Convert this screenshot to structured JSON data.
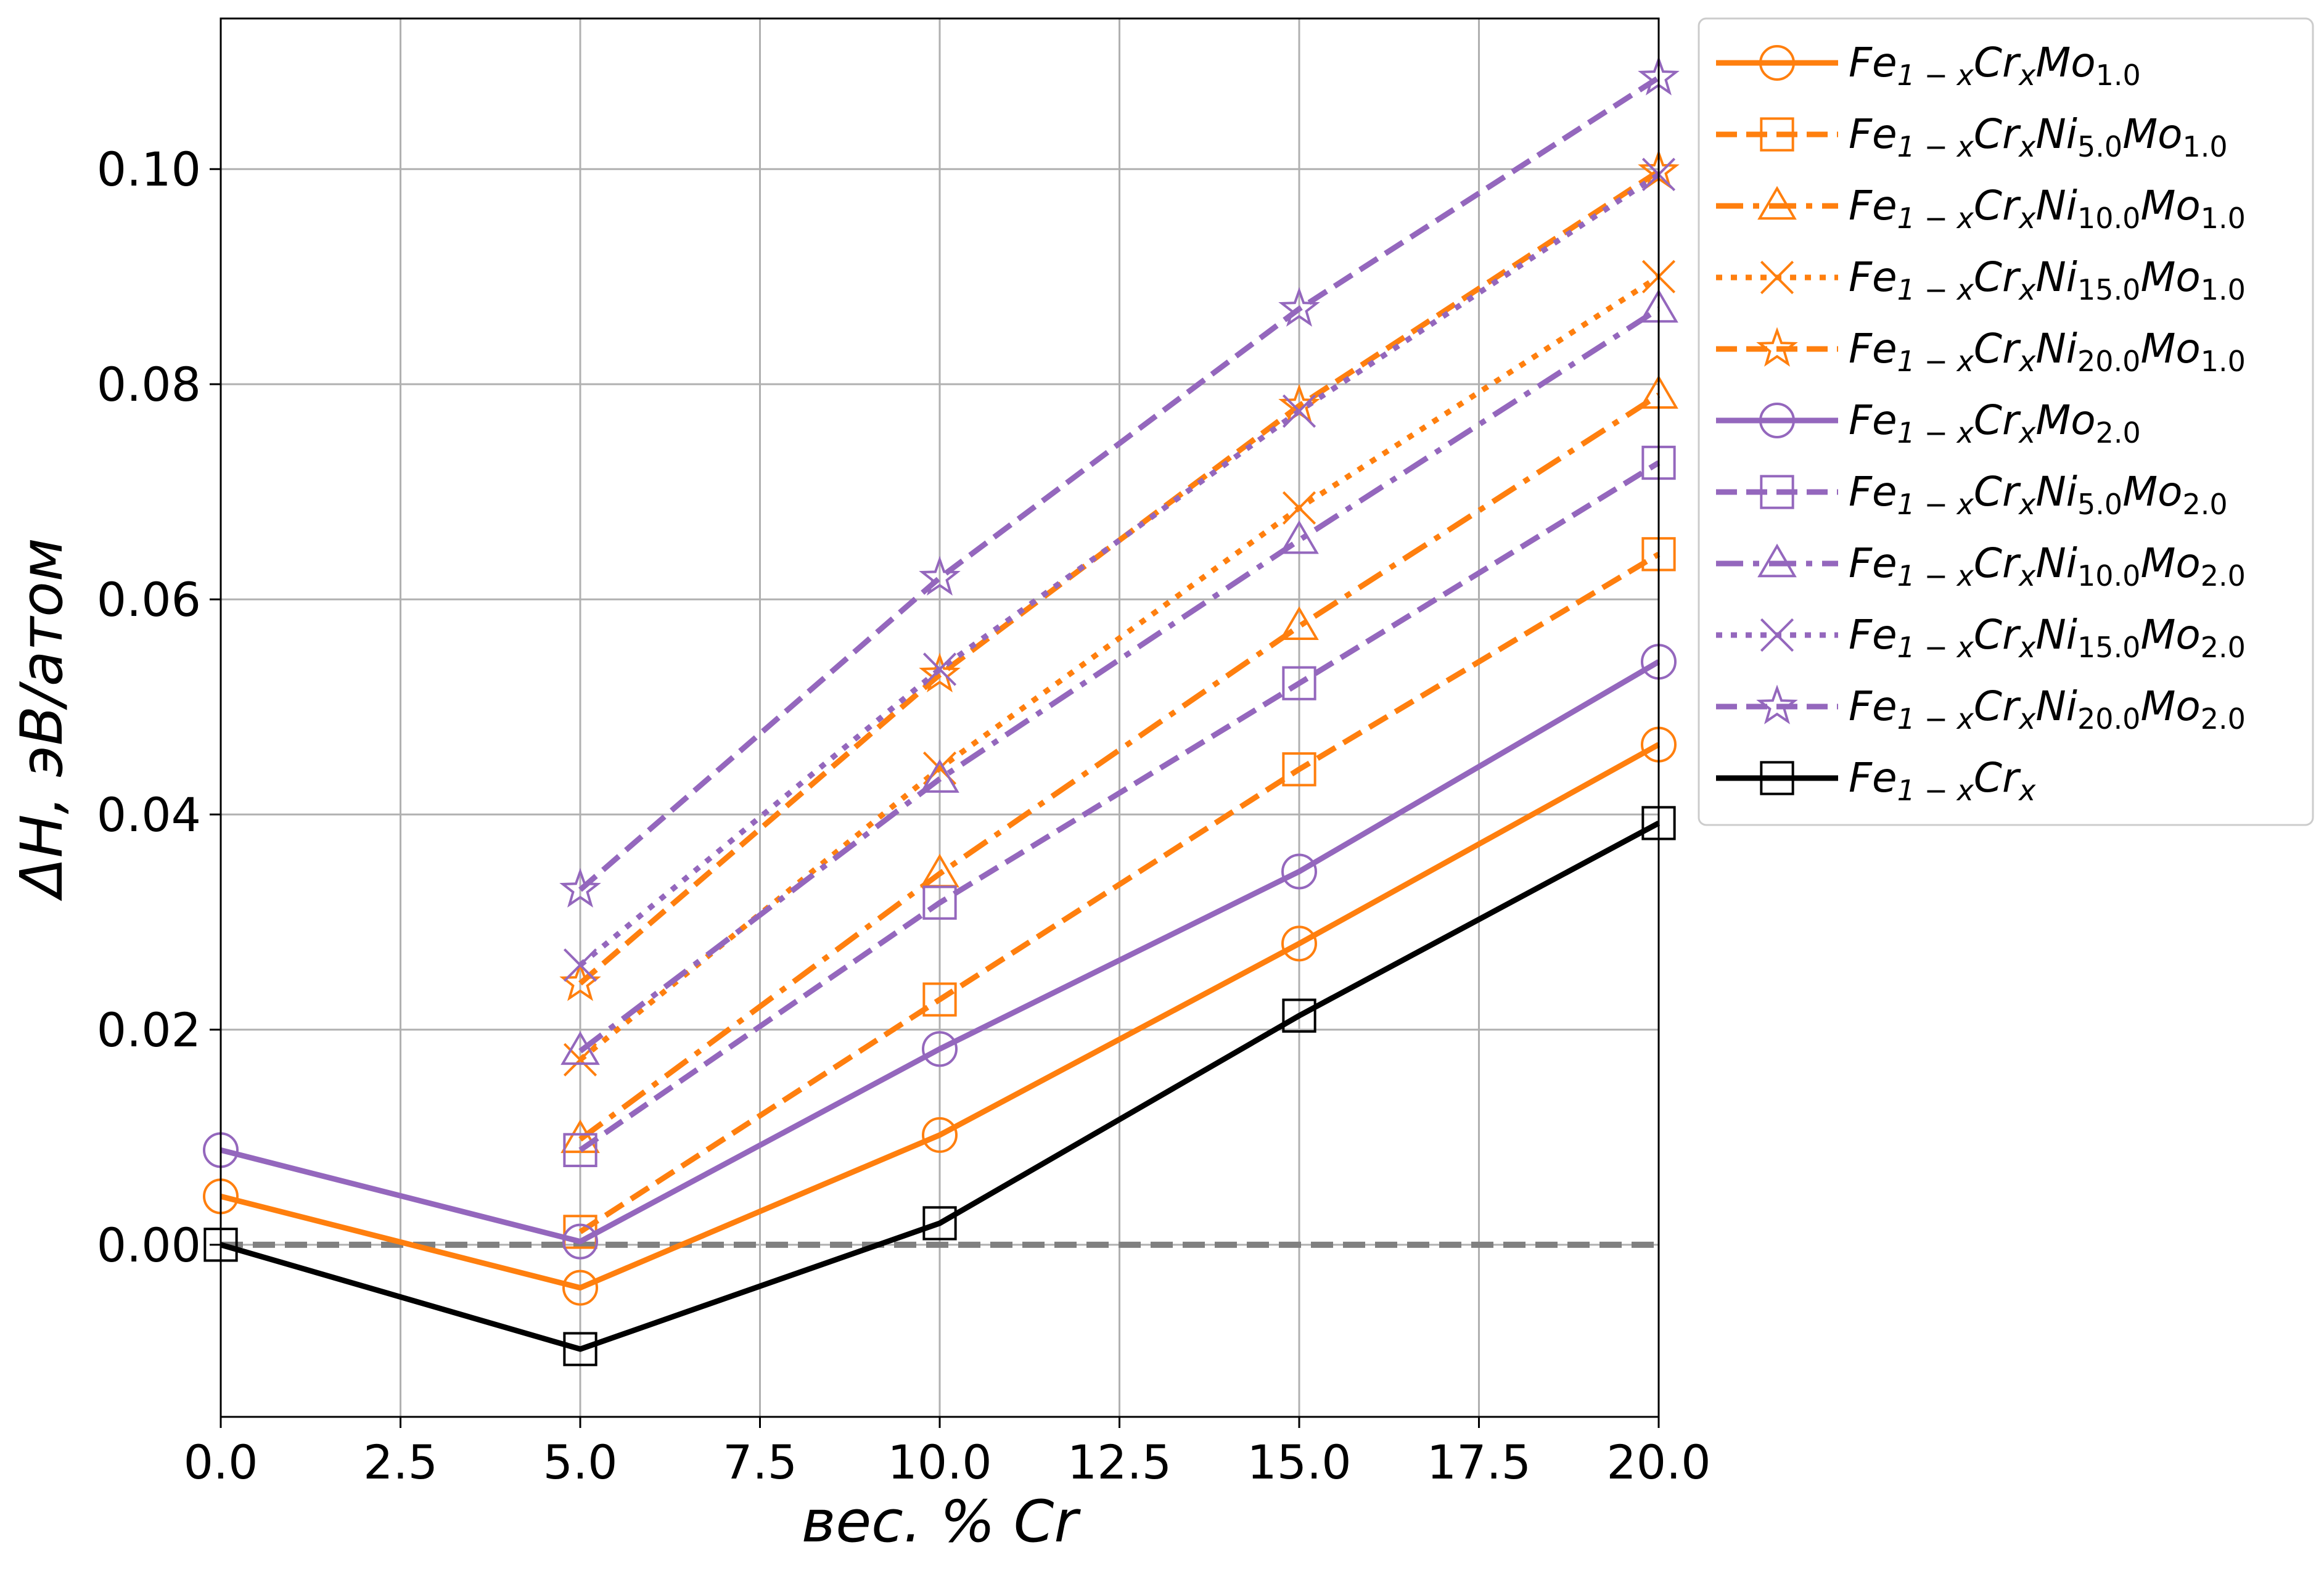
{
  "chart_data": {
    "type": "line",
    "xlabel": "вес. % Cr",
    "ylabel": "ΔH, эВ/атом",
    "xlim": [
      0,
      20
    ],
    "ylim": [
      -0.016,
      0.114
    ],
    "xticks": [
      0,
      2.5,
      5,
      7.5,
      10,
      12.5,
      15,
      17.5,
      20
    ],
    "xtick_labels": [
      "0.0",
      "2.5",
      "5.0",
      "7.5",
      "10.0",
      "12.5",
      "15.0",
      "17.5",
      "20.0"
    ],
    "yticks": [
      0,
      0.02,
      0.04,
      0.06,
      0.08,
      0.1
    ],
    "ytick_labels": [
      "0.00",
      "0.02",
      "0.04",
      "0.06",
      "0.08",
      "0.10"
    ],
    "grid": true,
    "legend_position": "outside-right-top",
    "reference_line": {
      "y": 0,
      "color": "#808080",
      "dash": "dashed"
    },
    "colors": {
      "orange": "#ff7f0e",
      "purple": "#9467bd",
      "black": "#000000"
    },
    "series": [
      {
        "name": "Fe1−xCrxMo1.0",
        "legend": {
          "base": "Fe",
          "sub1": "1 − x",
          "mid1": "Cr",
          "sub2": "x",
          "mid2": "Mo",
          "sub3": "1.0"
        },
        "color": "#ff7f0e",
        "dash": "solid",
        "marker": "circle",
        "x": [
          0,
          5,
          10,
          15,
          20
        ],
        "y": [
          0.0045,
          -0.004,
          0.0102,
          0.028,
          0.0465
        ]
      },
      {
        "name": "Fe1−xCrxNi5.0Mo1.0",
        "legend": {
          "base": "Fe",
          "sub1": "1 − x",
          "mid1": "Cr",
          "sub2": "x",
          "mid2": "Ni",
          "sub3": "5.0",
          "mid3": "Mo",
          "sub4": "1.0"
        },
        "color": "#ff7f0e",
        "dash": "dashed",
        "marker": "square",
        "x": [
          5,
          10,
          15,
          20
        ],
        "y": [
          0.0012,
          0.0228,
          0.0442,
          0.0642
        ]
      },
      {
        "name": "Fe1−xCrxNi10.0Mo1.0",
        "legend": {
          "base": "Fe",
          "sub1": "1 − x",
          "mid1": "Cr",
          "sub2": "x",
          "mid2": "Ni",
          "sub3": "10.0",
          "mid3": "Mo",
          "sub4": "1.0"
        },
        "color": "#ff7f0e",
        "dash": "dashdot",
        "marker": "triangle",
        "x": [
          5,
          10,
          15,
          20
        ],
        "y": [
          0.0098,
          0.0345,
          0.0575,
          0.079
        ]
      },
      {
        "name": "Fe1−xCrxNi15.0Mo1.0",
        "legend": {
          "base": "Fe",
          "sub1": "1 − x",
          "mid1": "Cr",
          "sub2": "x",
          "mid2": "Ni",
          "sub3": "15.0",
          "mid3": "Mo",
          "sub4": "1.0"
        },
        "color": "#ff7f0e",
        "dash": "dotted",
        "marker": "x",
        "x": [
          5,
          10,
          15,
          20
        ],
        "y": [
          0.0172,
          0.0443,
          0.0685,
          0.09
        ]
      },
      {
        "name": "Fe1−xCrxNi20.0Mo1.0",
        "legend": {
          "base": "Fe",
          "sub1": "1 − x",
          "mid1": "Cr",
          "sub2": "x",
          "mid2": "Ni",
          "sub3": "20.0",
          "mid3": "Mo",
          "sub4": "1.0"
        },
        "color": "#ff7f0e",
        "dash": "dashed",
        "marker": "star",
        "x": [
          5,
          10,
          15,
          20
        ],
        "y": [
          0.0243,
          0.053,
          0.078,
          0.0998
        ]
      },
      {
        "name": "Fe1−xCrxMo2.0",
        "legend": {
          "base": "Fe",
          "sub1": "1 − x",
          "mid1": "Cr",
          "sub2": "x",
          "mid2": "Mo",
          "sub3": "2.0"
        },
        "color": "#9467bd",
        "dash": "solid",
        "marker": "circle",
        "x": [
          0,
          5,
          10,
          15,
          20
        ],
        "y": [
          0.0088,
          0.0003,
          0.0182,
          0.0347,
          0.0542
        ]
      },
      {
        "name": "Fe1−xCrxNi5.0Mo2.0",
        "legend": {
          "base": "Fe",
          "sub1": "1 − x",
          "mid1": "Cr",
          "sub2": "x",
          "mid2": "Ni",
          "sub3": "5.0",
          "mid3": "Mo",
          "sub4": "2.0"
        },
        "color": "#9467bd",
        "dash": "dashed",
        "marker": "square",
        "x": [
          5,
          10,
          15,
          20
        ],
        "y": [
          0.0088,
          0.0318,
          0.0522,
          0.0727
        ]
      },
      {
        "name": "Fe1−xCrxNi10.0Mo2.0",
        "legend": {
          "base": "Fe",
          "sub1": "1 − x",
          "mid1": "Cr",
          "sub2": "x",
          "mid2": "Ni",
          "sub3": "10.0",
          "mid3": "Mo",
          "sub4": "2.0"
        },
        "color": "#9467bd",
        "dash": "dashdot",
        "marker": "triangle",
        "x": [
          5,
          10,
          15,
          20
        ],
        "y": [
          0.018,
          0.0433,
          0.0655,
          0.087
        ]
      },
      {
        "name": "Fe1−xCrxNi15.0Mo2.0",
        "legend": {
          "base": "Fe",
          "sub1": "1 − x",
          "mid1": "Cr",
          "sub2": "x",
          "mid2": "Ni",
          "sub3": "15.0",
          "mid3": "Mo",
          "sub4": "2.0"
        },
        "color": "#9467bd",
        "dash": "dotted",
        "marker": "x",
        "x": [
          5,
          10,
          15,
          20
        ],
        "y": [
          0.026,
          0.0535,
          0.0775,
          0.0995
        ]
      },
      {
        "name": "Fe1−xCrxNi20.0Mo2.0",
        "legend": {
          "base": "Fe",
          "sub1": "1 − x",
          "mid1": "Cr",
          "sub2": "x",
          "mid2": "Ni",
          "sub3": "20.0",
          "mid3": "Mo",
          "sub4": "2.0"
        },
        "color": "#9467bd",
        "dash": "dashed",
        "marker": "star",
        "x": [
          5,
          10,
          15,
          20
        ],
        "y": [
          0.033,
          0.062,
          0.087,
          0.1085
        ]
      },
      {
        "name": "Fe1−xCrx",
        "legend": {
          "base": "Fe",
          "sub1": "1 − x",
          "mid1": "Cr",
          "sub2": "x"
        },
        "color": "#000000",
        "dash": "solid",
        "marker": "square",
        "x": [
          0,
          5,
          10,
          15,
          20
        ],
        "y": [
          0.0,
          -0.0097,
          0.002,
          0.0213,
          0.0392
        ]
      }
    ]
  }
}
